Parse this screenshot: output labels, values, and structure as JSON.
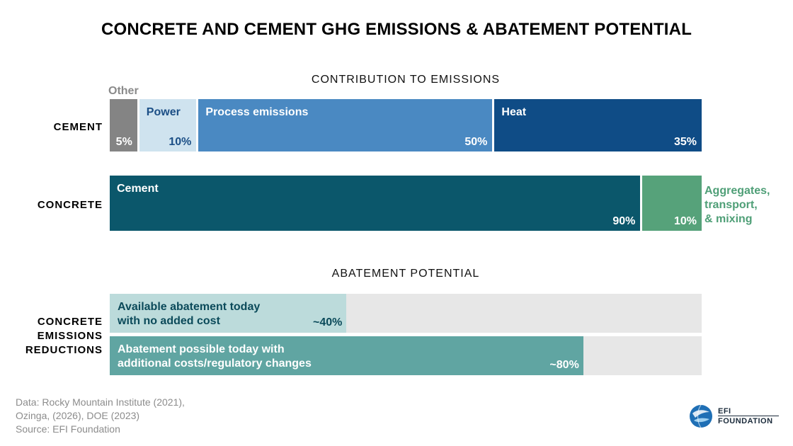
{
  "title": "CONCRETE AND CEMENT GHG EMISSIONS & ABATEMENT POTENTIAL",
  "sections": {
    "contribution": "CONTRIBUTION TO EMISSIONS",
    "abatement": "ABATEMENT POTENTIAL"
  },
  "chart_data": [
    {
      "type": "bar",
      "stacked": true,
      "orientation": "horizontal",
      "title": "CONTRIBUTION TO EMISSIONS",
      "categories": [
        "CEMENT"
      ],
      "series": [
        {
          "name": "Other",
          "values": [
            5
          ],
          "label": "5%",
          "color": "#848484"
        },
        {
          "name": "Power",
          "values": [
            10
          ],
          "label": "10%",
          "color": "#cfe3ef"
        },
        {
          "name": "Process emissions",
          "values": [
            50
          ],
          "label": "50%",
          "color": "#4a89c2"
        },
        {
          "name": "Heat",
          "values": [
            35
          ],
          "label": "35%",
          "color": "#0f4c86"
        }
      ],
      "xlim": [
        0,
        100
      ]
    },
    {
      "type": "bar",
      "stacked": true,
      "orientation": "horizontal",
      "categories": [
        "CONCRETE"
      ],
      "series": [
        {
          "name": "Cement",
          "values": [
            90
          ],
          "label": "90%",
          "color": "#0b576b"
        },
        {
          "name": "Aggregates, transport, & mixing",
          "label_lines": [
            "Aggregates,",
            "transport,",
            "& mixing"
          ],
          "values": [
            10
          ],
          "label": "10%",
          "color": "#56a27a"
        }
      ],
      "xlim": [
        0,
        100
      ]
    },
    {
      "type": "bar",
      "orientation": "horizontal",
      "title": "ABATEMENT POTENTIAL",
      "category_lines": [
        "CONCRETE",
        "EMISSIONS",
        "REDUCTIONS"
      ],
      "series": [
        {
          "name_lines": [
            "Available abatement today",
            "with no added cost"
          ],
          "values": [
            40
          ],
          "label": "~40%",
          "color": "#bcdbdb",
          "text_color": "#0b4a5a"
        },
        {
          "name_lines": [
            "Abatement possible today with",
            "additional costs/regulatory changes"
          ],
          "values": [
            80
          ],
          "label": "~80%",
          "color": "#60a5a2",
          "text_color": "#ffffff"
        }
      ],
      "xlim": [
        0,
        100
      ]
    }
  ],
  "footer": {
    "lines": [
      "Data: Rocky Mountain Institute (2021),",
      "Ozinga, (2026), DOE (2023)",
      "Source: EFI Foundation"
    ]
  },
  "logo": {
    "line1": "EFI",
    "line2": "FOUNDATION"
  }
}
